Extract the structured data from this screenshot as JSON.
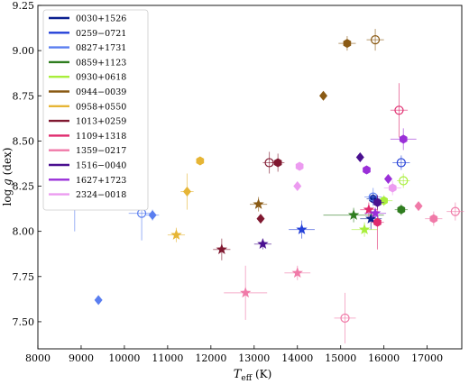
{
  "chart_data": {
    "type": "scatter",
    "xlabel_main": "T",
    "xlabel_sub": "eff",
    "xlabel_unit": " (K)",
    "ylabel_main": "log ",
    "ylabel_var": "g",
    "ylabel_unit": " (dex)",
    "xlim": [
      8000,
      17800
    ],
    "ylim": [
      7.35,
      9.25
    ],
    "xticks": [
      8000,
      9000,
      10000,
      11000,
      12000,
      13000,
      14000,
      15000,
      16000,
      17000
    ],
    "yticks": [
      7.5,
      7.75,
      8.0,
      8.25,
      8.5,
      8.75,
      9.0,
      9.25
    ],
    "ytick_labels": [
      "7.50",
      "7.75",
      "8.00",
      "8.25",
      "8.50",
      "8.75",
      "9.00",
      "9.25"
    ],
    "legend_position": "top-left",
    "series": [
      {
        "name": "0030+1526",
        "color": "#0a1f8f",
        "points": [
          {
            "x": 15700,
            "y": 8.07,
            "xerr": 250,
            "yerr": 0.06,
            "marker": "star"
          },
          {
            "x": 15750,
            "y": 8.18,
            "xerr": 150,
            "yerr": 0.03,
            "marker": "hex"
          }
        ]
      },
      {
        "name": "0259−0721",
        "color": "#2440d8",
        "points": [
          {
            "x": 14100,
            "y": 8.01,
            "xerr": 300,
            "yerr": 0.05,
            "marker": "star"
          },
          {
            "x": 16400,
            "y": 8.38,
            "xerr": 200,
            "yerr": 0.04,
            "marker": "open"
          }
        ]
      },
      {
        "name": "0827+1731",
        "color": "#5a7ef0",
        "points": [
          {
            "x": 8850,
            "y": 8.15,
            "xerr": 300,
            "yerr": 0.15,
            "marker": "hex"
          },
          {
            "x": 10400,
            "y": 8.1,
            "xerr": 300,
            "yerr": 0.15,
            "marker": "open"
          },
          {
            "x": 10650,
            "y": 8.09,
            "xerr": 150,
            "yerr": 0.03,
            "marker": "diamond"
          },
          {
            "x": 9400,
            "y": 7.62,
            "xerr": 0,
            "yerr": 0,
            "marker": "diamond"
          },
          {
            "x": 15750,
            "y": 8.19,
            "xerr": 200,
            "yerr": 0.05,
            "marker": "open"
          }
        ]
      },
      {
        "name": "0859+1123",
        "color": "#2f7d1f",
        "points": [
          {
            "x": 15300,
            "y": 8.09,
            "xerr": 700,
            "yerr": 0.04,
            "marker": "star"
          },
          {
            "x": 16400,
            "y": 8.12,
            "xerr": 150,
            "yerr": 0.03,
            "marker": "hex"
          }
        ]
      },
      {
        "name": "0930+0618",
        "color": "#a8ee3a",
        "points": [
          {
            "x": 15550,
            "y": 8.01,
            "xerr": 300,
            "yerr": 0.04,
            "marker": "star"
          },
          {
            "x": 16000,
            "y": 8.17,
            "xerr": 200,
            "yerr": 0.03,
            "marker": "hex"
          },
          {
            "x": 16450,
            "y": 8.28,
            "xerr": 150,
            "yerr": 0.04,
            "marker": "open"
          }
        ]
      },
      {
        "name": "0944−0039",
        "color": "#8a5a14",
        "points": [
          {
            "x": 15150,
            "y": 9.04,
            "xerr": 200,
            "yerr": 0.04,
            "marker": "hex"
          },
          {
            "x": 15800,
            "y": 9.06,
            "xerr": 200,
            "yerr": 0.06,
            "marker": "open"
          },
          {
            "x": 14600,
            "y": 8.75,
            "xerr": 0,
            "yerr": 0,
            "marker": "diamond"
          },
          {
            "x": 13100,
            "y": 8.15,
            "xerr": 200,
            "yerr": 0.04,
            "marker": "star"
          }
        ]
      },
      {
        "name": "0958+0550",
        "color": "#e6b535",
        "points": [
          {
            "x": 11450,
            "y": 8.22,
            "xerr": 150,
            "yerr": 0.1,
            "marker": "diamond"
          },
          {
            "x": 11750,
            "y": 8.39,
            "xerr": 0,
            "yerr": 0,
            "marker": "hex"
          },
          {
            "x": 11200,
            "y": 7.98,
            "xerr": 200,
            "yerr": 0.04,
            "marker": "star"
          }
        ]
      },
      {
        "name": "1013+0259",
        "color": "#801830",
        "points": [
          {
            "x": 12250,
            "y": 7.9,
            "xerr": 200,
            "yerr": 0.06,
            "marker": "star"
          },
          {
            "x": 13150,
            "y": 8.07,
            "xerr": 0,
            "yerr": 0,
            "marker": "diamond"
          },
          {
            "x": 13350,
            "y": 8.38,
            "xerr": 150,
            "yerr": 0.06,
            "marker": "open"
          },
          {
            "x": 13550,
            "y": 8.38,
            "xerr": 150,
            "yerr": 0.05,
            "marker": "hex"
          }
        ]
      },
      {
        "name": "1109+1318",
        "color": "#e02b6e",
        "points": [
          {
            "x": 15850,
            "y": 8.05,
            "xerr": 150,
            "yerr": 0.15,
            "marker": "hex"
          },
          {
            "x": 15650,
            "y": 8.12,
            "xerr": 200,
            "yerr": 0.04,
            "marker": "star"
          },
          {
            "x": 16350,
            "y": 8.67,
            "xerr": 200,
            "yerr": 0.15,
            "marker": "open"
          }
        ]
      },
      {
        "name": "1359−0217",
        "color": "#f07aa8",
        "points": [
          {
            "x": 12800,
            "y": 7.66,
            "xerr": 500,
            "yerr": 0.15,
            "marker": "star"
          },
          {
            "x": 14000,
            "y": 7.77,
            "xerr": 300,
            "yerr": 0.04,
            "marker": "star"
          },
          {
            "x": 15100,
            "y": 7.52,
            "xerr": 250,
            "yerr": 0.14,
            "marker": "open"
          },
          {
            "x": 16800,
            "y": 8.14,
            "xerr": 0,
            "yerr": 0,
            "marker": "diamond"
          },
          {
            "x": 17150,
            "y": 8.07,
            "xerr": 200,
            "yerr": 0.04,
            "marker": "hex"
          },
          {
            "x": 17650,
            "y": 8.11,
            "xerr": 200,
            "yerr": 0.05,
            "marker": "open"
          }
        ]
      },
      {
        "name": "1516−0040",
        "color": "#4a1090",
        "points": [
          {
            "x": 13200,
            "y": 7.93,
            "xerr": 200,
            "yerr": 0.03,
            "marker": "star"
          },
          {
            "x": 15450,
            "y": 8.41,
            "xerr": 0,
            "yerr": 0,
            "marker": "diamond"
          },
          {
            "x": 15850,
            "y": 8.16,
            "xerr": 150,
            "yerr": 0.04,
            "marker": "hex"
          }
        ]
      },
      {
        "name": "1627+1723",
        "color": "#9a2fd8",
        "points": [
          {
            "x": 15600,
            "y": 8.34,
            "xerr": 0,
            "yerr": 0,
            "marker": "hex"
          },
          {
            "x": 16450,
            "y": 8.51,
            "xerr": 300,
            "yerr": 0.06,
            "marker": "hex"
          },
          {
            "x": 16100,
            "y": 8.29,
            "xerr": 0,
            "yerr": 0,
            "marker": "diamond"
          },
          {
            "x": 15800,
            "y": 8.1,
            "xerr": 250,
            "yerr": 0.03,
            "marker": "star"
          }
        ]
      },
      {
        "name": "2324−0018",
        "color": "#ec9bf0",
        "points": [
          {
            "x": 14050,
            "y": 8.36,
            "xerr": 0,
            "yerr": 0,
            "marker": "hex"
          },
          {
            "x": 14000,
            "y": 8.25,
            "xerr": 0,
            "yerr": 0,
            "marker": "diamond"
          },
          {
            "x": 16200,
            "y": 8.24,
            "xerr": 200,
            "yerr": 0.04,
            "marker": "hex"
          }
        ]
      }
    ]
  }
}
